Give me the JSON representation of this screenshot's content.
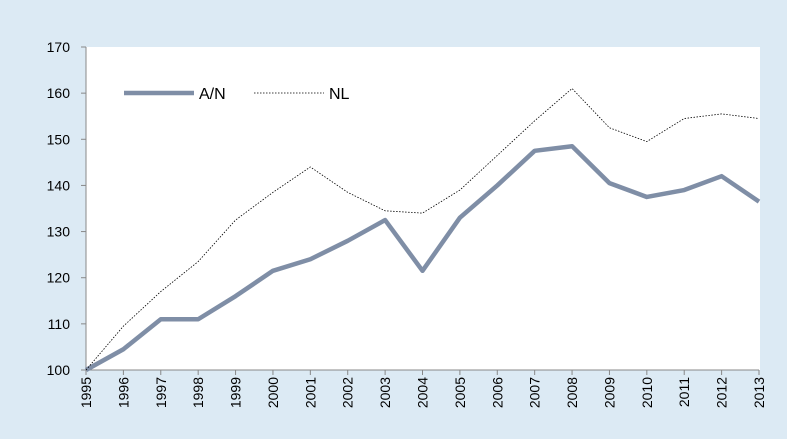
{
  "chart_data": {
    "type": "line",
    "categories": [
      "1995",
      "1996",
      "1997",
      "1998",
      "1999",
      "2000",
      "2001",
      "2002",
      "2003",
      "2004",
      "2005",
      "2006",
      "2007",
      "2008",
      "2009",
      "2010",
      "2011",
      "2012",
      "2013"
    ],
    "series": [
      {
        "name": "A/N",
        "color": "#7f8ea6",
        "values": [
          100,
          104.5,
          111,
          111,
          116,
          121.5,
          124,
          128,
          132.5,
          121.5,
          133,
          140,
          147.5,
          148.5,
          140.5,
          137.5,
          139,
          142,
          136.5
        ]
      },
      {
        "name": "NL",
        "color": "#000000",
        "values": [
          100,
          109.5,
          117,
          123.5,
          132.5,
          138.5,
          144,
          138.5,
          134.5,
          134,
          139,
          146.5,
          154,
          161,
          152.5,
          149.5,
          154.5,
          155.5,
          154.5
        ]
      }
    ],
    "ylim": [
      100,
      170
    ],
    "yticks": [
      100,
      110,
      120,
      130,
      140,
      150,
      160,
      170
    ],
    "legend": "upper left"
  }
}
